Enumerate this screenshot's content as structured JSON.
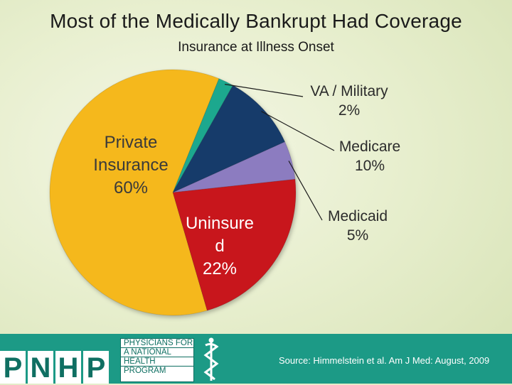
{
  "header": {
    "title": "Most of the Medically Bankrupt Had Coverage",
    "subtitle": "Insurance at Illness Onset"
  },
  "chart_data": {
    "type": "pie",
    "title": "Most of the Medically Bankrupt Had Coverage",
    "subtitle": "Insurance at Illness Onset",
    "slices": [
      {
        "name": "VA / Military",
        "value": 2,
        "label": "2%",
        "color": "#1fa88e"
      },
      {
        "name": "Medicare",
        "value": 10,
        "label": "10%",
        "color": "#143a6b"
      },
      {
        "name": "Medicaid",
        "value": 5,
        "label": "5%",
        "color": "#8c7bc0"
      },
      {
        "name": "Uninsure d",
        "value": 22,
        "label": "22%",
        "color": "#c8141c"
      },
      {
        "name": "Private Insurance",
        "value": 60,
        "label": "60%",
        "color": "#f5b81c"
      }
    ],
    "start_angle_deg": 22,
    "direction": "clockwise",
    "legend": "none",
    "labels_private": [
      "Private",
      "Insurance",
      "60%"
    ],
    "labels_uninsured": [
      "Uninsure",
      "d",
      "22%"
    ],
    "labels_va": [
      "VA / Military",
      "2%"
    ],
    "labels_medicare": [
      "Medicare",
      "10%"
    ],
    "labels_medicaid": [
      "Medicaid",
      "5%"
    ]
  },
  "footer": {
    "logo_letters": [
      "P",
      "N",
      "H",
      "P"
    ],
    "logo_lines": [
      "PHYSICIANS FOR",
      "A NATIONAL",
      "HEALTH",
      "PROGRAM"
    ],
    "source": "Source: Himmelstein et al. Am J Med: August, 2009",
    "colors": {
      "bar": "#1c9a86",
      "logo": "#0f6f62"
    }
  }
}
